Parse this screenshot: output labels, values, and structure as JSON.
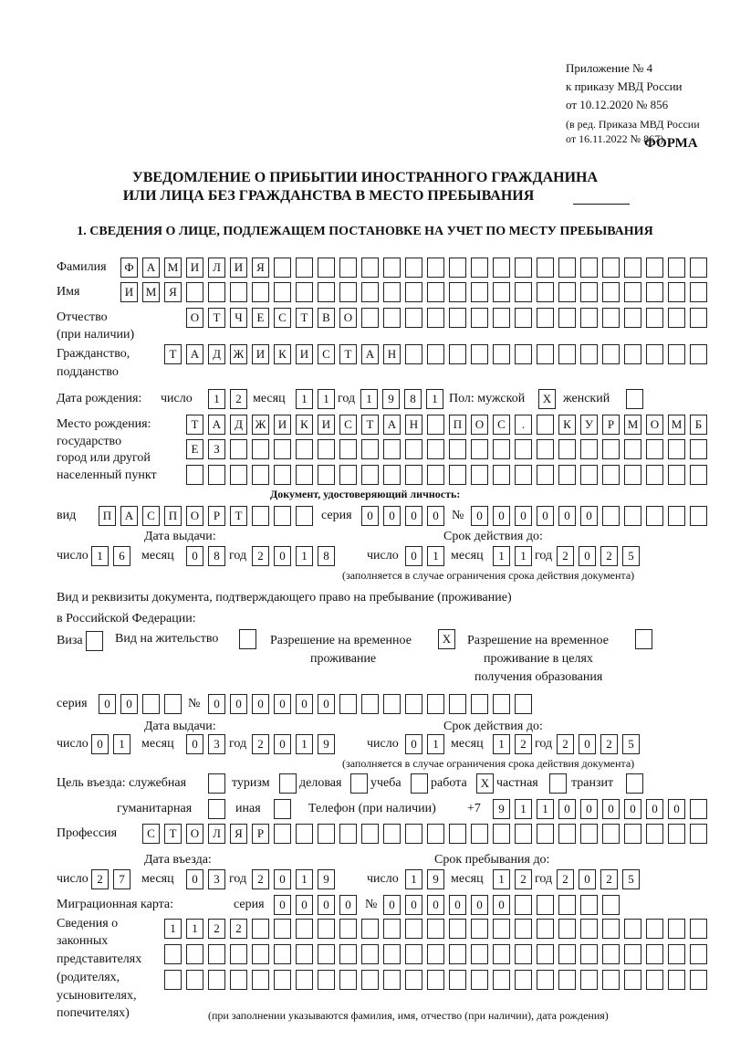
{
  "header": {
    "appendix": "Приложение № 4",
    "order": "к приказу МВД России",
    "order_date": "от 10.12.2020 № 856",
    "edition1": "(в ред. Приказа МВД России",
    "edition2": "от 16.11.2022 № 867)",
    "form": "ФОРМА",
    "title1": "УВЕДОМЛЕНИЕ О ПРИБЫТИИ ИНОСТРАННОГО ГРАЖДАНИНА",
    "title2": "ИЛИ ЛИЦА БЕЗ ГРАЖДАНСТВА В МЕСТО ПРЕБЫВАНИЯ",
    "section1": "1. СВЕДЕНИЯ О ЛИЦЕ, ПОДЛЕЖАЩЕМ ПОСТАНОВКЕ НА УЧЕТ ПО МЕСТУ ПРЕБЫВАНИЯ"
  },
  "labels": {
    "surname": "Фамилия",
    "name": "Имя",
    "patronymic": "Отчество",
    "patronymic2": "(при наличии)",
    "citizenship": "Гражданство,",
    "citizenship2": "подданство",
    "birth_date": "Дата рождения:",
    "day": "число",
    "month": "месяц",
    "year": "год",
    "sex": "Пол: мужской",
    "female": "женский",
    "birthplace": "Место рождения:",
    "birthplace2": "государство",
    "birthplace3": "город или другой",
    "birthplace4": "населенный пункт",
    "id_doc": "Документ, удостоверяющий личность:",
    "kind": "вид",
    "series": "серия",
    "number": "№",
    "issue_date": "Дата выдачи:",
    "valid_until": "Срок действия до:",
    "validity_note": "(заполняется в случае ограничения срока действия документа)",
    "right_doc1": "Вид и реквизиты документа, подтверждающего право на пребывание (проживание)",
    "right_doc2": "в Российской Федерации:",
    "visa": "Виза",
    "residence": "Вид на жительство",
    "temp1": "Разрешение на временное",
    "temp2": "проживание",
    "edu1": "Разрешение на временное",
    "edu2": "проживание в целях",
    "edu3": "получения образования",
    "purpose": "Цель въезда: служебная",
    "tourism": "туризм",
    "business": "деловая",
    "study": "учеба",
    "work": "работа",
    "private": "частная",
    "transit": "транзит",
    "humanitarian": "гуманитарная",
    "other": "иная",
    "phone": "Телефон (при наличии)",
    "phone_code": "+7",
    "profession": "Профессия",
    "entry_date": "Дата въезда:",
    "stay_until": "Срок пребывания до:",
    "migration_card": "Миграционная карта:",
    "reps1": "Сведения о",
    "reps2": "законных",
    "reps3": "представителях",
    "reps4": "(родителях,",
    "reps5": "усыновителях,",
    "reps6": "попечителях)",
    "reps_note": "(при заполнении указываются фамилия, имя, отчество (при наличии), дата рождения)"
  },
  "fields": {
    "surname": {
      "value": "ФАМИЛИЯ",
      "boxes": 27
    },
    "name": {
      "value": "ИМЯ",
      "boxes": 27
    },
    "patronymic": {
      "value": "ОТЧЕСТВО",
      "boxes": 24
    },
    "citizenship": {
      "value": "ТАДЖИКИСТАН",
      "boxes": 25
    },
    "birth_day": {
      "value": "12",
      "boxes": 2
    },
    "birth_month": {
      "value": "11",
      "boxes": 2
    },
    "birth_year": {
      "value": "1981",
      "boxes": 4
    },
    "sex_male": {
      "value": "X",
      "boxes": 1
    },
    "sex_female": {
      "value": "",
      "boxes": 1
    },
    "birthplace_1": {
      "value": "ТАДЖИКИСТАН ПОС. КУРМОМБ",
      "boxes": 24
    },
    "birthplace_2": {
      "value": "ЕЗ",
      "boxes": 24
    },
    "birthplace_3": {
      "value": "",
      "boxes": 24
    },
    "doc_kind": {
      "value": "ПАСПОРТ",
      "boxes": 10
    },
    "doc_series": {
      "value": "0000",
      "boxes": 4
    },
    "doc_number": {
      "value": "000000",
      "boxes": 11
    },
    "doc_issue_day": {
      "value": "16",
      "boxes": 2
    },
    "doc_issue_month": {
      "value": "08",
      "boxes": 2
    },
    "doc_issue_year": {
      "value": "2018",
      "boxes": 4
    },
    "doc_valid_day": {
      "value": "01",
      "boxes": 2
    },
    "doc_valid_month": {
      "value": "11",
      "boxes": 2
    },
    "doc_valid_year": {
      "value": "2025",
      "boxes": 4
    },
    "chk_visa": {
      "value": "",
      "boxes": 1
    },
    "chk_residence": {
      "value": "",
      "boxes": 1
    },
    "chk_temp": {
      "value": "X",
      "boxes": 1
    },
    "chk_edu": {
      "value": "",
      "boxes": 1
    },
    "right_series": {
      "value": "00",
      "boxes": 4
    },
    "right_number": {
      "value": "000000",
      "boxes": 15
    },
    "right_issue_day": {
      "value": "01",
      "boxes": 2
    },
    "right_issue_month": {
      "value": "03",
      "boxes": 2
    },
    "right_issue_year": {
      "value": "2019",
      "boxes": 4
    },
    "right_valid_day": {
      "value": "01",
      "boxes": 2
    },
    "right_valid_month": {
      "value": "12",
      "boxes": 2
    },
    "right_valid_year": {
      "value": "2025",
      "boxes": 4
    },
    "p_official": {
      "value": "",
      "boxes": 1
    },
    "p_tourism": {
      "value": "",
      "boxes": 1
    },
    "p_business": {
      "value": "",
      "boxes": 1
    },
    "p_study": {
      "value": "",
      "boxes": 1
    },
    "p_work": {
      "value": "X",
      "boxes": 1
    },
    "p_private": {
      "value": "",
      "boxes": 1
    },
    "p_transit": {
      "value": "",
      "boxes": 1
    },
    "p_humanitarian": {
      "value": "",
      "boxes": 1
    },
    "p_other": {
      "value": "",
      "boxes": 1
    },
    "phone": {
      "value": "911000000",
      "boxes": 10
    },
    "profession": {
      "value": "СТОЛЯР",
      "boxes": 26
    },
    "entry_day": {
      "value": "27",
      "boxes": 2
    },
    "entry_month": {
      "value": "03",
      "boxes": 2
    },
    "entry_year": {
      "value": "2019",
      "boxes": 4
    },
    "stay_day": {
      "value": "19",
      "boxes": 2
    },
    "stay_month": {
      "value": "12",
      "boxes": 2
    },
    "stay_year": {
      "value": "2025",
      "boxes": 4
    },
    "mc_series": {
      "value": "0000",
      "boxes": 4
    },
    "mc_number": {
      "value": "000000",
      "boxes": 11
    },
    "reps_1": {
      "value": "1122",
      "boxes": 25
    },
    "reps_2": {
      "value": "",
      "boxes": 25
    },
    "reps_3": {
      "value": "",
      "boxes": 25
    }
  }
}
